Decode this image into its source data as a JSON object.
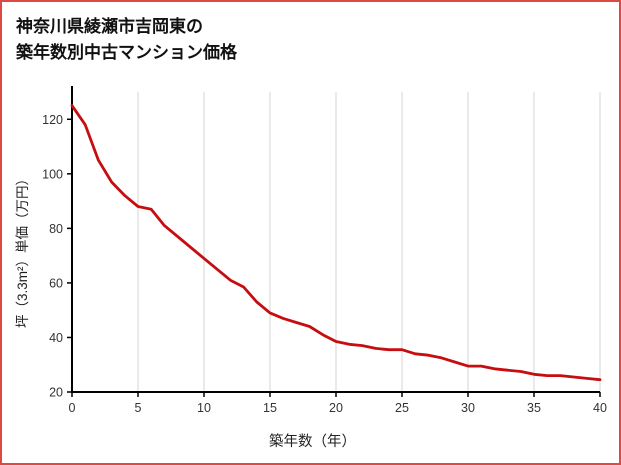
{
  "title": {
    "line1": "神奈川県綾瀬市吉岡東の",
    "line2": "築年数別中古マンション価格"
  },
  "colors": {
    "border": "#dd4a41",
    "line": "#c60d10",
    "grid": "#d6d6d6",
    "axis": "#000000"
  },
  "chart_data": {
    "type": "line",
    "title": "神奈川県綾瀬市吉岡東の築年数別中古マンション価格",
    "xlabel": "築年数（年）",
    "ylabel": "坪（3.3m²）単価（万円）",
    "xlim": [
      0,
      40
    ],
    "ylim": [
      20,
      130
    ],
    "xticks": [
      0,
      5,
      10,
      15,
      20,
      25,
      30,
      35,
      40
    ],
    "yticks": [
      20,
      40,
      60,
      80,
      100,
      120
    ],
    "grid": "vertical-only",
    "legend": "none",
    "line_color": "#c60d10",
    "grid_color": "#d6d6d6",
    "x": [
      0,
      1,
      2,
      3,
      4,
      5,
      6,
      7,
      8,
      9,
      10,
      11,
      12,
      13,
      14,
      15,
      16,
      17,
      18,
      19,
      20,
      21,
      22,
      23,
      24,
      25,
      26,
      27,
      28,
      29,
      30,
      31,
      32,
      33,
      34,
      35,
      36,
      37,
      38,
      39,
      40
    ],
    "values": [
      125,
      118,
      105,
      97,
      92,
      88,
      87,
      81,
      77,
      73,
      69,
      65,
      61,
      58.5,
      53,
      49,
      47,
      45.5,
      44,
      41,
      38.5,
      37.5,
      37,
      36,
      35.5,
      35.5,
      34,
      33.5,
      32.5,
      31,
      29.5,
      29.5,
      28.5,
      28,
      27.5,
      26.5,
      26,
      26,
      25.5,
      25,
      24.5
    ]
  }
}
